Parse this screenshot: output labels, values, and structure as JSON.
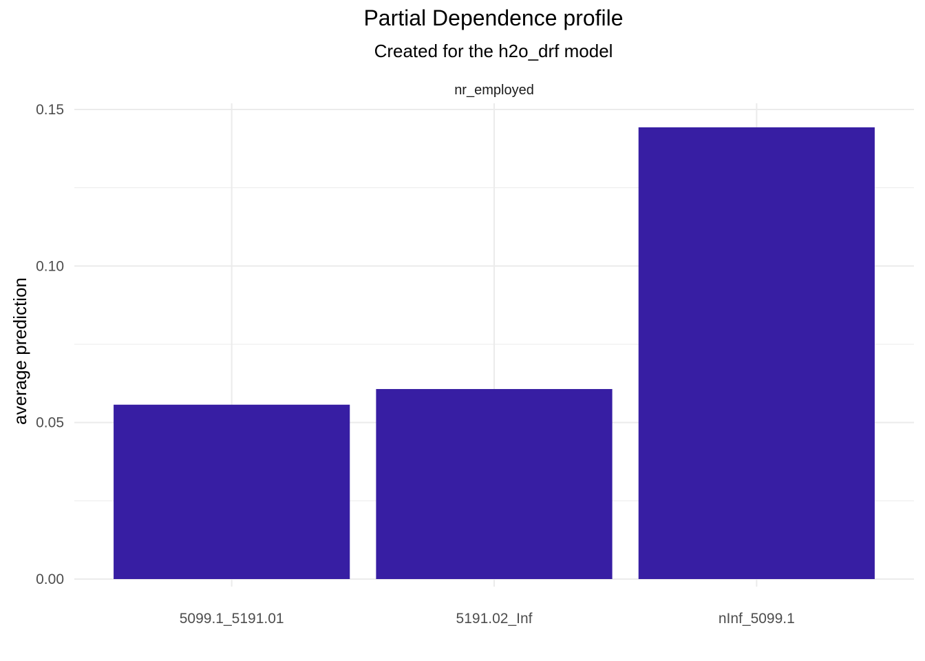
{
  "title": "Partial Dependence profile",
  "subtitle": "Created for the h2o_drf model",
  "colors": {
    "bar": "#371EA3",
    "grid": "#EBEBEB",
    "tick_text": "#4D4D4D"
  },
  "chart_data": {
    "type": "bar",
    "facet_label": "nr_employed",
    "categories": [
      "5099.1_5191.01",
      "5191.02_Inf",
      "nInf_5099.1"
    ],
    "values": [
      0.0557,
      0.0607,
      0.1443
    ],
    "xlabel": "",
    "ylabel": "average prediction",
    "ylim": [
      0,
      0.15
    ],
    "yticks": [
      0.0,
      0.05,
      0.1,
      0.15
    ],
    "ytick_labels": [
      "0.00",
      "0.05",
      "0.10",
      "0.15"
    ],
    "grid": true,
    "legend": "none"
  }
}
